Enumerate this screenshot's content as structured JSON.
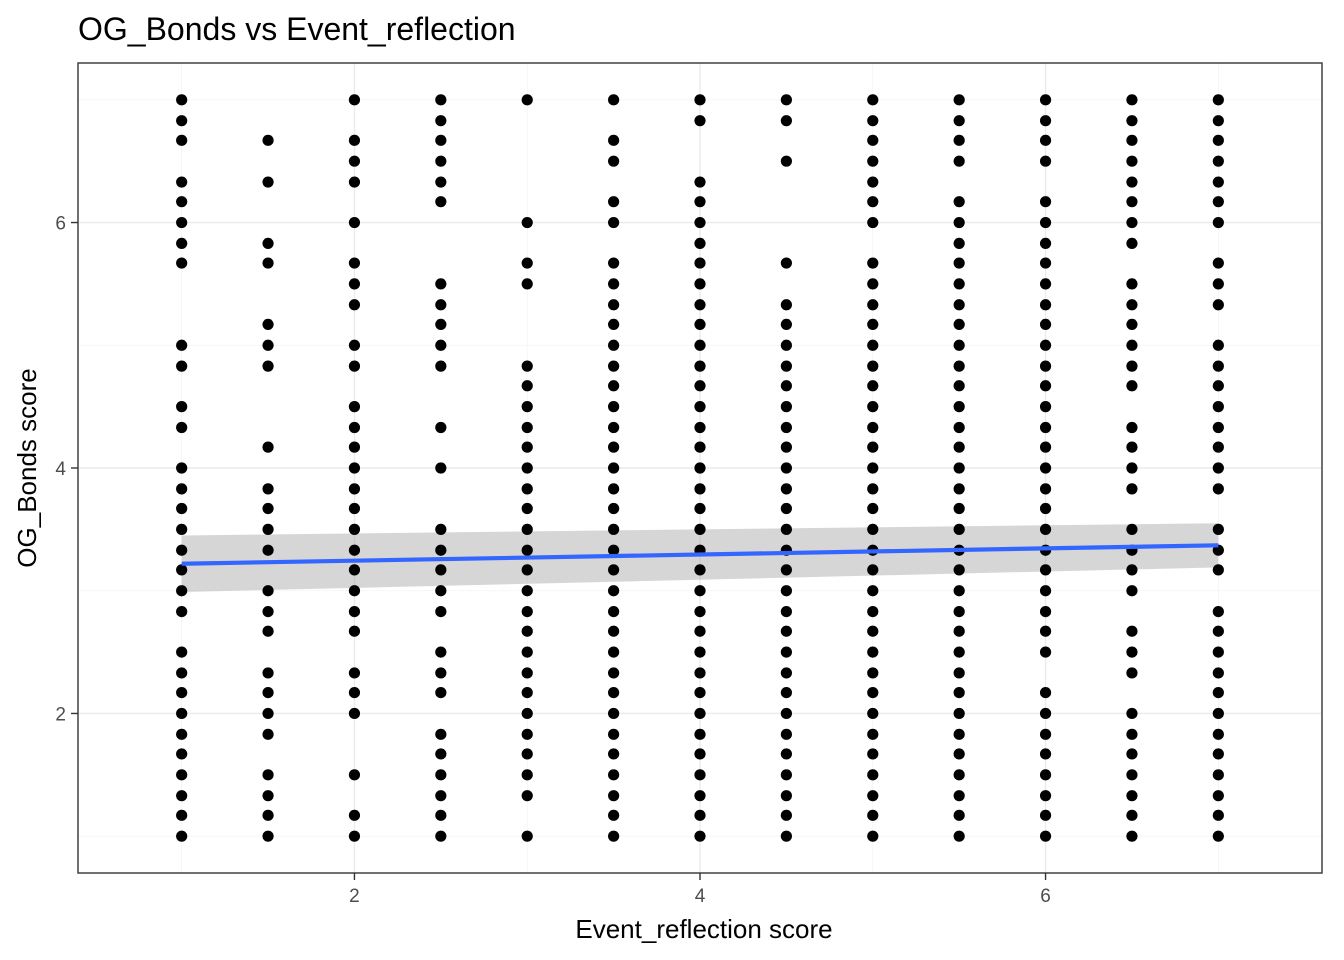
{
  "chart_data": {
    "type": "scatter",
    "title": "OG_Bonds vs Event_reflection",
    "xlabel": "Event_reflection score",
    "ylabel": "OG_Bonds score",
    "xlim": [
      0.4,
      7.6
    ],
    "ylim": [
      0.7,
      7.3
    ],
    "x_ticks": [
      2,
      4,
      6
    ],
    "y_ticks": [
      2,
      4,
      6
    ],
    "grid": true,
    "series": [
      {
        "points": [
          {
            "x": 1.0,
            "y": [
              1.0,
              1.17,
              1.33,
              1.5,
              1.67,
              1.83,
              2.0,
              2.17,
              2.33,
              2.5,
              2.83,
              3.0,
              3.17,
              3.33,
              3.5,
              3.67,
              3.83,
              4.0,
              4.33,
              4.5,
              4.83,
              5.0,
              5.67,
              5.83,
              6.0,
              6.17,
              6.33,
              6.67,
              6.83,
              7.0
            ]
          },
          {
            "x": 1.5,
            "y": [
              1.0,
              1.17,
              1.33,
              1.5,
              1.83,
              2.0,
              2.17,
              2.33,
              2.67,
              2.83,
              3.0,
              3.33,
              3.5,
              3.67,
              3.83,
              4.17,
              4.83,
              5.0,
              5.17,
              5.67,
              5.83,
              6.33,
              6.67
            ]
          },
          {
            "x": 2.0,
            "y": [
              1.0,
              1.17,
              1.5,
              2.0,
              2.17,
              2.33,
              2.67,
              2.83,
              3.0,
              3.17,
              3.33,
              3.5,
              3.67,
              3.83,
              4.0,
              4.17,
              4.33,
              4.5,
              4.83,
              5.0,
              5.33,
              5.5,
              5.67,
              6.0,
              6.33,
              6.5,
              6.67,
              7.0
            ]
          },
          {
            "x": 2.5,
            "y": [
              1.0,
              1.17,
              1.33,
              1.5,
              1.67,
              1.83,
              2.17,
              2.33,
              2.5,
              2.83,
              3.0,
              3.17,
              3.33,
              3.5,
              4.0,
              4.33,
              4.83,
              5.0,
              5.17,
              5.33,
              5.5,
              6.17,
              6.33,
              6.5,
              6.67,
              6.83,
              7.0
            ]
          },
          {
            "x": 3.0,
            "y": [
              1.0,
              1.33,
              1.5,
              1.67,
              1.83,
              2.0,
              2.17,
              2.33,
              2.5,
              2.67,
              2.83,
              3.0,
              3.17,
              3.33,
              3.5,
              3.67,
              3.83,
              4.0,
              4.17,
              4.33,
              4.5,
              4.67,
              4.83,
              5.5,
              5.67,
              6.0,
              7.0
            ]
          },
          {
            "x": 3.5,
            "y": [
              1.0,
              1.17,
              1.33,
              1.5,
              1.67,
              1.83,
              2.0,
              2.17,
              2.33,
              2.5,
              2.67,
              2.83,
              3.0,
              3.17,
              3.33,
              3.5,
              3.67,
              3.83,
              4.0,
              4.17,
              4.33,
              4.5,
              4.67,
              4.83,
              5.0,
              5.17,
              5.33,
              5.5,
              5.67,
              6.0,
              6.17,
              6.5,
              6.67,
              7.0
            ]
          },
          {
            "x": 4.0,
            "y": [
              1.0,
              1.17,
              1.33,
              1.5,
              1.67,
              1.83,
              2.0,
              2.17,
              2.33,
              2.5,
              2.67,
              2.83,
              3.0,
              3.17,
              3.33,
              3.5,
              3.67,
              3.83,
              4.0,
              4.17,
              4.33,
              4.5,
              4.67,
              4.83,
              5.0,
              5.17,
              5.33,
              5.5,
              5.67,
              5.83,
              6.0,
              6.17,
              6.33,
              6.83,
              7.0
            ]
          },
          {
            "x": 4.5,
            "y": [
              1.0,
              1.17,
              1.33,
              1.5,
              1.67,
              1.83,
              2.0,
              2.17,
              2.33,
              2.5,
              2.67,
              2.83,
              3.0,
              3.17,
              3.33,
              3.5,
              3.67,
              3.83,
              4.0,
              4.17,
              4.33,
              4.5,
              4.67,
              4.83,
              5.0,
              5.17,
              5.33,
              5.67,
              6.5,
              6.83,
              7.0
            ]
          },
          {
            "x": 5.0,
            "y": [
              1.0,
              1.17,
              1.33,
              1.5,
              1.67,
              1.83,
              2.0,
              2.17,
              2.33,
              2.5,
              2.67,
              2.83,
              3.0,
              3.17,
              3.33,
              3.5,
              3.67,
              3.83,
              4.0,
              4.17,
              4.33,
              4.5,
              4.67,
              4.83,
              5.0,
              5.17,
              5.33,
              5.5,
              5.67,
              6.0,
              6.17,
              6.33,
              6.5,
              6.67,
              6.83,
              7.0
            ]
          },
          {
            "x": 5.5,
            "y": [
              1.0,
              1.17,
              1.33,
              1.5,
              1.67,
              1.83,
              2.0,
              2.17,
              2.33,
              2.5,
              2.67,
              2.83,
              3.0,
              3.17,
              3.33,
              3.5,
              3.67,
              3.83,
              4.0,
              4.17,
              4.33,
              4.5,
              4.67,
              4.83,
              5.0,
              5.17,
              5.33,
              5.5,
              5.67,
              5.83,
              6.0,
              6.17,
              6.5,
              6.67,
              6.83,
              7.0
            ]
          },
          {
            "x": 6.0,
            "y": [
              1.0,
              1.17,
              1.33,
              1.5,
              1.67,
              1.83,
              2.0,
              2.17,
              2.5,
              2.67,
              2.83,
              3.0,
              3.17,
              3.33,
              3.5,
              3.67,
              3.83,
              4.0,
              4.17,
              4.33,
              4.5,
              4.67,
              4.83,
              5.0,
              5.17,
              5.33,
              5.5,
              5.67,
              5.83,
              6.0,
              6.17,
              6.5,
              6.67,
              6.83,
              7.0
            ]
          },
          {
            "x": 6.5,
            "y": [
              1.0,
              1.17,
              1.33,
              1.5,
              1.67,
              1.83,
              2.0,
              2.33,
              2.5,
              2.67,
              3.0,
              3.17,
              3.33,
              3.5,
              3.83,
              4.0,
              4.17,
              4.33,
              4.67,
              4.83,
              5.0,
              5.17,
              5.33,
              5.5,
              5.83,
              6.0,
              6.17,
              6.33,
              6.5,
              6.67,
              6.83,
              7.0
            ]
          },
          {
            "x": 7.0,
            "y": [
              1.0,
              1.17,
              1.33,
              1.5,
              1.67,
              1.83,
              2.0,
              2.17,
              2.33,
              2.5,
              2.67,
              2.83,
              3.17,
              3.33,
              3.5,
              3.83,
              4.0,
              4.17,
              4.33,
              4.5,
              4.67,
              4.83,
              5.0,
              5.33,
              5.5,
              5.67,
              6.0,
              6.17,
              6.33,
              6.5,
              6.67,
              6.83,
              7.0
            ]
          }
        ]
      }
    ],
    "trend_line": {
      "method": "linear",
      "x": [
        1.0,
        7.0
      ],
      "y": [
        3.22,
        3.37
      ],
      "ci_lower": [
        2.99,
        3.19
      ],
      "ci_upper": [
        3.45,
        3.55
      ],
      "color": "#3366FF",
      "band_color": "#999999"
    }
  }
}
